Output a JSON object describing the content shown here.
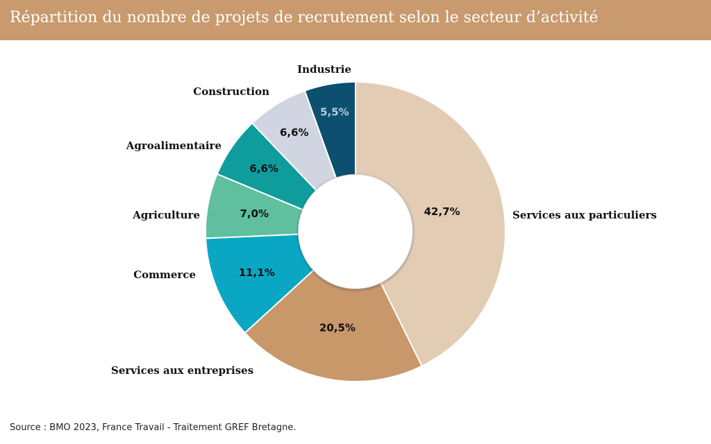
{
  "title": "Répartition du nombre de projets de recrutement selon le secteur d’activité",
  "source": "Source : BMO 2023, France Travail - Traitement GREF Bretagne.",
  "colors": {
    "title_bar": "#c89a6e",
    "title_text": "#ffffff"
  },
  "chart_data": {
    "type": "pie",
    "variant": "donut",
    "unit": "%",
    "categories": [
      "Services aux particuliers",
      "Services aux entreprises",
      "Commerce",
      "Agriculture",
      "Agroalimentaire",
      "Construction",
      "Industrie"
    ],
    "values": [
      42.7,
      20.5,
      11.1,
      7.0,
      6.6,
      6.6,
      5.5
    ],
    "value_labels": [
      "42,7%",
      "20,5%",
      "11,1%",
      "7,0%",
      "6,6%",
      "6,6%",
      "5,5%"
    ],
    "colors": [
      "#e3ccb4",
      "#c8976a",
      "#0aa7c4",
      "#5fbf9f",
      "#0e9c9c",
      "#d1d5e1",
      "#0d4f6e"
    ],
    "label_colors": [
      "#111111",
      "#111111",
      "#111111",
      "#111111",
      "#111111",
      "#111111",
      "#b9cfe0"
    ],
    "start": "top",
    "direction": "clockwise",
    "legend": "none"
  }
}
